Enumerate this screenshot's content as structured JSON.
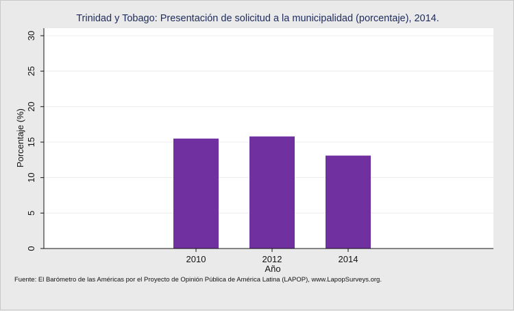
{
  "chart_data": {
    "type": "bar",
    "title": "Trinidad y Tobago: Presentación de solicitud a la municipalidad (porcentaje), 2014.",
    "xlabel": "Año",
    "ylabel": "Porcentaje (%)",
    "categories": [
      "2010",
      "2012",
      "2014"
    ],
    "values": [
      15.5,
      15.8,
      13.1
    ],
    "ylim": [
      0,
      30
    ],
    "yticks": [
      "0",
      "5",
      "10",
      "15",
      "20",
      "25",
      "30"
    ],
    "grid": true,
    "legend": "none",
    "bar_color": "#7030a0",
    "plot_background": "#ffffff",
    "page_background": "#eaeaea"
  },
  "footer": {
    "source": "Fuente: El Barómetro de las Américas por el Proyecto de Opinión Pública de América Latina (LAPOP), www.LapopSurveys.org."
  }
}
